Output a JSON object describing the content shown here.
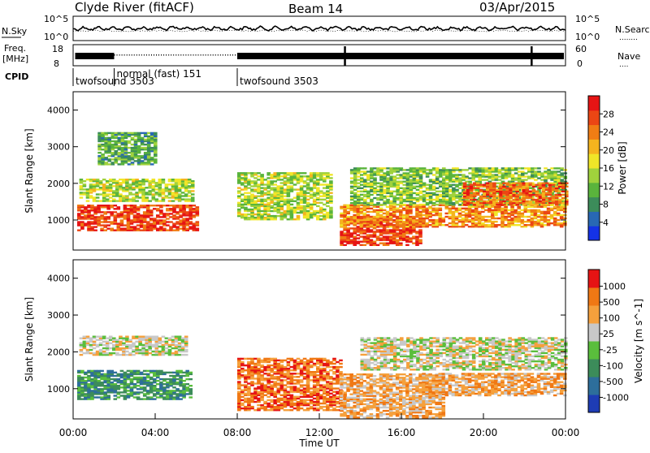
{
  "header": {
    "station": "Clyde River (fitACF)",
    "beam": "Beam 14",
    "date": "03/Apr/2015"
  },
  "noise_panel": {
    "left_label": "N.Sky",
    "left_tick_top": "10^5",
    "left_tick_bottom": "10^0",
    "right_tick_top": "10^5",
    "right_tick_bottom": "10^0",
    "right_label": "N.Search",
    "right_label_marker": "........"
  },
  "freq_panel": {
    "left_label_line1": "Freq.",
    "left_label_line2": "[MHz]",
    "left_tick_top": "18",
    "left_tick_bottom": "8",
    "right_tick_top": "60",
    "right_tick_bottom": "0",
    "right_label": "Nave",
    "right_label_marker": "...."
  },
  "cpid": {
    "label": "CPID",
    "segments": [
      {
        "text": "twofsound 3503",
        "start": 0,
        "end": 2
      },
      {
        "text": "normal (fast) 151",
        "start": 2,
        "end": 8
      },
      {
        "text": "twofsound 3503",
        "start": 8,
        "end": 24
      }
    ]
  },
  "chart_data": [
    {
      "type": "heatmap",
      "title": "Power",
      "ylabel": "Slant Range [km]",
      "xlabel": "",
      "xlim": [
        0,
        24
      ],
      "ylim": [
        180,
        4500
      ],
      "yticks": [
        1000,
        2000,
        3000,
        4000
      ],
      "colorbar": {
        "label": "Power [dB]",
        "ticks": [
          "4",
          "8",
          "12",
          "16",
          "20",
          "24",
          "28"
        ],
        "range": [
          0,
          30
        ]
      },
      "colors": [
        "#1432e6",
        "#2868b4",
        "#3c8c5a",
        "#5ab43c",
        "#a0d23c",
        "#f0e628",
        "#f5b41e",
        "#f07d14",
        "#eb4614",
        "#e61414"
      ],
      "echo_bands": [
        {
          "t0": 0.2,
          "t1": 6.0,
          "r0": 700,
          "r1": 1400,
          "level": 26
        },
        {
          "t0": 0.3,
          "t1": 5.8,
          "r0": 1500,
          "r1": 2100,
          "level": 14
        },
        {
          "t0": 1.2,
          "t1": 4.0,
          "r0": 2500,
          "r1": 3400,
          "level": 10
        },
        {
          "t0": 8.0,
          "t1": 12.5,
          "r0": 1000,
          "r1": 2300,
          "level": 14
        },
        {
          "t0": 13.0,
          "t1": 17.0,
          "r0": 300,
          "r1": 1100,
          "level": 26
        },
        {
          "t0": 13.0,
          "t1": 24.0,
          "r0": 800,
          "r1": 1400,
          "level": 22
        },
        {
          "t0": 13.5,
          "t1": 24.0,
          "r0": 1400,
          "r1": 2400,
          "level": 12
        },
        {
          "t0": 19.0,
          "t1": 24.0,
          "r0": 1400,
          "r1": 2000,
          "level": 24
        }
      ]
    },
    {
      "type": "heatmap",
      "title": "Velocity",
      "ylabel": "Slant Range [km]",
      "xlabel": "Time UT",
      "xlim": [
        0,
        24
      ],
      "ylim": [
        180,
        4500
      ],
      "yticks": [
        1000,
        2000,
        3000,
        4000
      ],
      "xticks": [
        "00:00",
        "04:00",
        "08:00",
        "12:00",
        "16:00",
        "20:00",
        "00:00"
      ],
      "colorbar": {
        "label": "Velocity [m s^-1]",
        "ticks": [
          "1000",
          "500",
          "100",
          "25",
          "-25",
          "-100",
          "-500",
          "-1000"
        ]
      },
      "colors": [
        "#1e3cb4",
        "#2d6e9b",
        "#3c8c5a",
        "#5abe3c",
        "#c8c8c8",
        "#f5a03c",
        "#f07814",
        "#e61414"
      ],
      "echo_bands": [
        {
          "t0": 0.2,
          "t1": 5.8,
          "r0": 700,
          "r1": 1500,
          "level": 2
        },
        {
          "t0": 0.3,
          "t1": 5.5,
          "r0": 1900,
          "r1": 2400,
          "level": 4
        },
        {
          "t0": 8.0,
          "t1": 13.0,
          "r0": 400,
          "r1": 1800,
          "level": 6
        },
        {
          "t0": 13.0,
          "t1": 18.0,
          "r0": 200,
          "r1": 1400,
          "level": 5
        },
        {
          "t0": 14.0,
          "t1": 24.0,
          "r0": 1500,
          "r1": 2400,
          "level": 4
        },
        {
          "t0": 17.0,
          "t1": 24.0,
          "r0": 800,
          "r1": 1400,
          "level": 5
        }
      ]
    }
  ]
}
